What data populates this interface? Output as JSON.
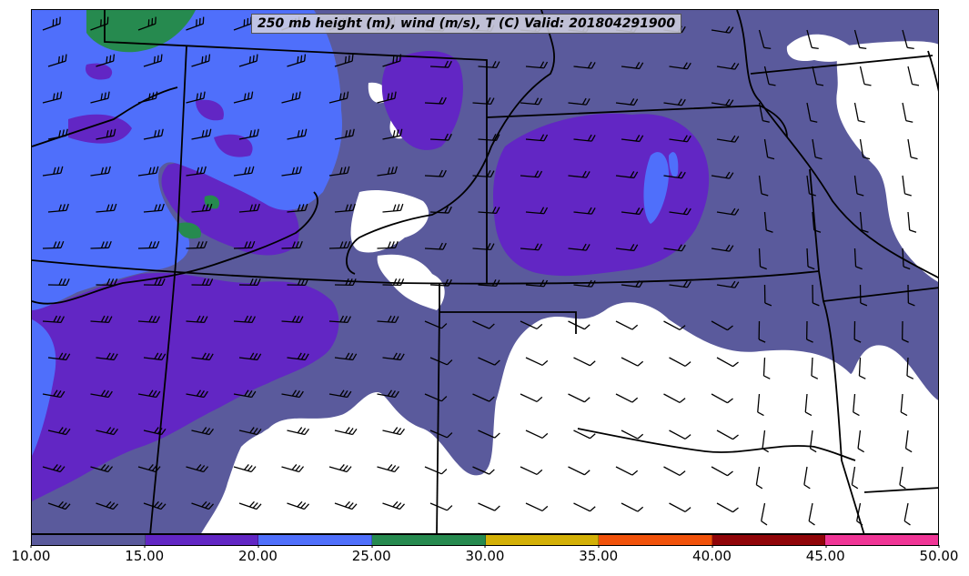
{
  "title": "250 mb height (m), wind (m/s), T (C) Valid: 201804291900",
  "colorbar": {
    "min": 10.0,
    "max": 50.0,
    "tick_labels": [
      "10.00",
      "15.00",
      "20.00",
      "25.00",
      "30.00",
      "35.00",
      "40.00",
      "45.00",
      "50.00"
    ],
    "colors": [
      "#5a5a9c",
      "#6226c4",
      "#4f6ffb",
      "#268a4f",
      "#d3b007",
      "#f1520a",
      "#900509",
      "#f03596"
    ]
  },
  "map": {
    "region": "Central United States",
    "field": "250 mb wind speed (m/s)",
    "background_color": "#ffffff",
    "boundary_color": "#000000",
    "barb_color": "#000000"
  }
}
